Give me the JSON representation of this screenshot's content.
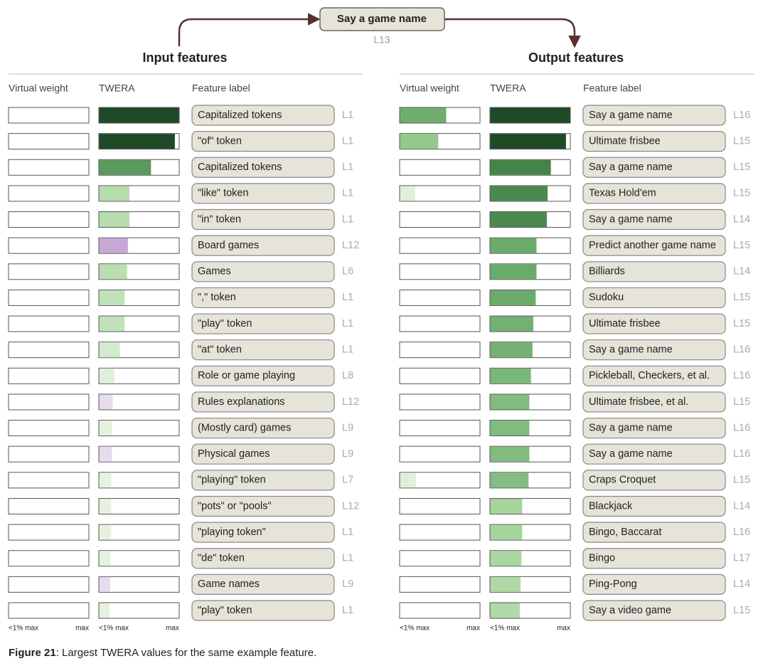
{
  "top_node": {
    "label": "Say a game name",
    "layer": "L13"
  },
  "scale": {
    "min_label": "<1% max",
    "max_label": "max"
  },
  "caption": {
    "figure": "Figure 21",
    "text": ": Largest TWERA values for the same example feature."
  },
  "panels": [
    {
      "title": "Input features",
      "columns": [
        "Virtual weight",
        "TWERA",
        "Feature label"
      ],
      "rows": [
        {
          "label": "Capitalized tokens",
          "layer": "L1",
          "virtual_weight": 0,
          "twera": 1.0,
          "twera_color": "#1e4a27"
        },
        {
          "label": "\"of\" token",
          "layer": "L1",
          "virtual_weight": 0,
          "twera": 0.95,
          "twera_color": "#1e4a27"
        },
        {
          "label": "Capitalized tokens",
          "layer": "L1",
          "virtual_weight": 0,
          "twera": 0.65,
          "twera_color": "#5a9a5c"
        },
        {
          "label": "\"like\" token",
          "layer": "L1",
          "virtual_weight": 0,
          "twera": 0.38,
          "twera_color": "#b7dcae"
        },
        {
          "label": "\"in\" token",
          "layer": "L1",
          "virtual_weight": 0,
          "twera": 0.38,
          "twera_color": "#b7dcae"
        },
        {
          "label": "Board games",
          "layer": "L12",
          "virtual_weight": 0,
          "twera": 0.36,
          "twera_color": "#c5a9d4"
        },
        {
          "label": "Games",
          "layer": "L6",
          "virtual_weight": 0,
          "twera": 0.35,
          "twera_color": "#bbdeb2"
        },
        {
          "label": "\",\" token",
          "layer": "L1",
          "virtual_weight": 0,
          "twera": 0.32,
          "twera_color": "#c1e1b8"
        },
        {
          "label": "\"play\" token",
          "layer": "L1",
          "virtual_weight": 0,
          "twera": 0.32,
          "twera_color": "#c1e1b8"
        },
        {
          "label": "\"at\" token",
          "layer": "L1",
          "virtual_weight": 0,
          "twera": 0.26,
          "twera_color": "#d3ebcc"
        },
        {
          "label": "Role or game playing",
          "layer": "L8",
          "virtual_weight": 0,
          "twera": 0.19,
          "twera_color": "#dff0da"
        },
        {
          "label": "Rules explanations",
          "layer": "L12",
          "virtual_weight": 0,
          "twera": 0.17,
          "twera_color": "#e6dcee"
        },
        {
          "label": "(Mostly card) games",
          "layer": "L9",
          "virtual_weight": 0,
          "twera": 0.16,
          "twera_color": "#e2f2dd"
        },
        {
          "label": "Physical games",
          "layer": "L9",
          "virtual_weight": 0,
          "twera": 0.16,
          "twera_color": "#e6dcee"
        },
        {
          "label": "\"playing\" token",
          "layer": "L7",
          "virtual_weight": 0,
          "twera": 0.15,
          "twera_color": "#e4f2df"
        },
        {
          "label": "\"pots\" or \"pools\"",
          "layer": "L12",
          "virtual_weight": 0,
          "twera": 0.15,
          "twera_color": "#e4f2df"
        },
        {
          "label": "\"playing token\"",
          "layer": "L1",
          "virtual_weight": 0,
          "twera": 0.15,
          "twera_color": "#e4f2df"
        },
        {
          "label": "\"de\" token",
          "layer": "L1",
          "virtual_weight": 0,
          "twera": 0.14,
          "twera_color": "#e4f2df"
        },
        {
          "label": "Game names",
          "layer": "L9",
          "virtual_weight": 0,
          "twera": 0.14,
          "twera_color": "#e6dcee"
        },
        {
          "label": "\"play\" token",
          "layer": "L1",
          "virtual_weight": 0,
          "twera": 0.13,
          "twera_color": "#e4f2df"
        }
      ]
    },
    {
      "title": "Output features",
      "columns": [
        "Virtual weight",
        "TWERA",
        "Feature label"
      ],
      "rows": [
        {
          "label": "Say a game name",
          "layer": "L16",
          "virtual_weight": 0.58,
          "vw_color": "#6fae6e",
          "twera": 1.0,
          "twera_color": "#1e4a27"
        },
        {
          "label": "Ultimate frisbee",
          "layer": "L15",
          "virtual_weight": 0.48,
          "vw_color": "#94c98c",
          "twera": 0.95,
          "twera_color": "#1e4a27"
        },
        {
          "label": "Say a game name",
          "layer": "L15",
          "virtual_weight": 0,
          "twera": 0.76,
          "twera_color": "#438548"
        },
        {
          "label": "Texas Hold'em",
          "layer": "L15",
          "virtual_weight": 0.19,
          "vw_color": "#dff0da",
          "twera": 0.72,
          "twera_color": "#4a8a4f"
        },
        {
          "label": "Say a game name",
          "layer": "L14",
          "virtual_weight": 0,
          "twera": 0.71,
          "twera_color": "#4a8a4f"
        },
        {
          "label": "Predict another game name",
          "layer": "L15",
          "virtual_weight": 0,
          "twera": 0.58,
          "twera_color": "#6aab6b"
        },
        {
          "label": "Billiards",
          "layer": "L14",
          "virtual_weight": 0,
          "twera": 0.58,
          "twera_color": "#6aab6b"
        },
        {
          "label": "Sudoku",
          "layer": "L15",
          "virtual_weight": 0,
          "twera": 0.57,
          "twera_color": "#6aab6b"
        },
        {
          "label": "Ultimate frisbee",
          "layer": "L15",
          "virtual_weight": 0,
          "twera": 0.54,
          "twera_color": "#72b073"
        },
        {
          "label": "Say a game name",
          "layer": "L16",
          "virtual_weight": 0,
          "twera": 0.53,
          "twera_color": "#72b073"
        },
        {
          "label": "Pickleball, Checkers, et al.",
          "layer": "L16",
          "virtual_weight": 0,
          "twera": 0.51,
          "twera_color": "#7ab87a"
        },
        {
          "label": "Ultimate frisbee, et al.",
          "layer": "L15",
          "virtual_weight": 0,
          "twera": 0.49,
          "twera_color": "#80bb7f"
        },
        {
          "label": "Say a game name",
          "layer": "L16",
          "virtual_weight": 0,
          "twera": 0.49,
          "twera_color": "#80bb7f"
        },
        {
          "label": "Say a game name",
          "layer": "L16",
          "virtual_weight": 0,
          "twera": 0.49,
          "twera_color": "#80bb7f"
        },
        {
          "label": "Craps Croquet",
          "layer": "L15",
          "virtual_weight": 0.2,
          "vw_color": "#dff0da",
          "twera": 0.48,
          "twera_color": "#84bd82"
        },
        {
          "label": "Blackjack",
          "layer": "L14",
          "virtual_weight": 0,
          "twera": 0.4,
          "twera_color": "#a6d49d"
        },
        {
          "label": "Bingo, Baccarat",
          "layer": "L16",
          "virtual_weight": 0,
          "twera": 0.4,
          "twera_color": "#a6d49d"
        },
        {
          "label": "Bingo",
          "layer": "L17",
          "virtual_weight": 0,
          "twera": 0.39,
          "twera_color": "#aad6a1"
        },
        {
          "label": "Ping-Pong",
          "layer": "L14",
          "virtual_weight": 0,
          "twera": 0.38,
          "twera_color": "#aed8a5"
        },
        {
          "label": "Say a video game",
          "layer": "L15",
          "virtual_weight": 0,
          "twera": 0.37,
          "twera_color": "#b0d9a8"
        }
      ]
    }
  ]
}
